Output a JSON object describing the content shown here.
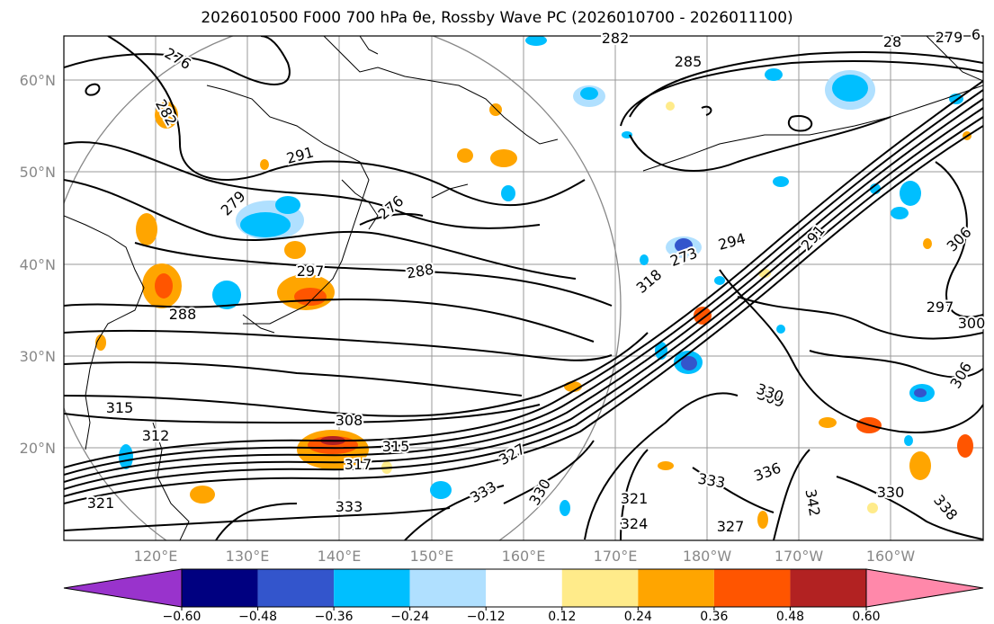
{
  "title": "2026010500 F000 700 hPa θe, Rossby Wave PC (2026010700 - 2026011100)",
  "map": {
    "projection_note": "",
    "lat_labels": [
      "60°N",
      "50°N",
      "40°N",
      "30°N",
      "20°N"
    ],
    "lon_labels": [
      "120°E",
      "130°E",
      "140°E",
      "150°E",
      "160°E",
      "170°E",
      "180°W",
      "170°W",
      "160°W"
    ],
    "contour_labels": [
      "276",
      "282",
      "285",
      "28",
      "279",
      "6",
      "282",
      "291",
      "279",
      "276",
      "273",
      "297",
      "288",
      "288",
      "291",
      "294",
      "318",
      "297",
      "300",
      "306",
      "306",
      "309",
      "308",
      "315",
      "312",
      "315",
      "317",
      "327",
      "333",
      "330",
      "321",
      "324",
      "327",
      "330",
      "333",
      "336",
      "321",
      "333",
      "342",
      "338",
      "330",
      "333",
      "315"
    ],
    "colors": {
      "neg_strong": "#9933cc",
      "neg_1": "#000080",
      "neg_2": "#3355cc",
      "neg_3": "#00bfff",
      "neg_4": "#b0e0ff",
      "pos_1": "#ffeb8a",
      "pos_2": "#ffa500",
      "pos_3": "#ff5500",
      "pos_4": "#b22222",
      "pos_strong": "#ff88aa"
    }
  },
  "colorbar": {
    "ticks": [
      "−0.60",
      "−0.48",
      "−0.36",
      "−0.24",
      "−0.12",
      "0.12",
      "0.24",
      "0.36",
      "0.48",
      "0.60"
    ],
    "bins": [
      "#9933cc",
      "#000080",
      "#3355cc",
      "#00bfff",
      "#b0e0ff",
      "#ffffff",
      "#ffeb8a",
      "#ffa500",
      "#ff5500",
      "#b22222",
      "#ff88aa"
    ]
  }
}
